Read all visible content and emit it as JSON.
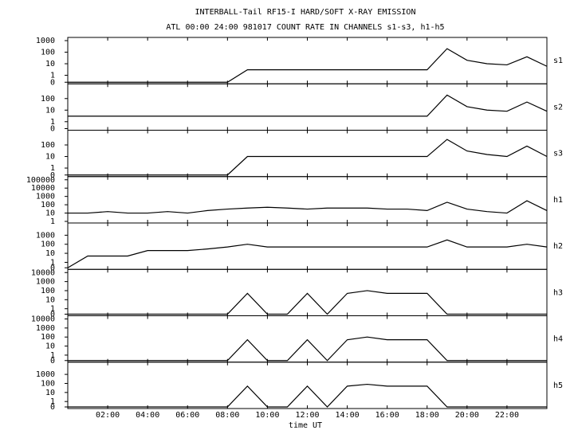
{
  "chart_data": {
    "type": "line",
    "title": "INTERBALL-Tail RF15-I HARD/SOFT X-RAY EMISSION",
    "subtitle": "ATL 00:00 24:00 981017  COUNT RATE IN CHANNELS s1-s3, h1-h5",
    "xlabel": "time UT",
    "log_scale": true,
    "color": "#000000",
    "xlim": [
      0,
      24
    ],
    "xticks": [
      {
        "value": 2,
        "label": "02:00"
      },
      {
        "value": 4,
        "label": "04:00"
      },
      {
        "value": 6,
        "label": "06:00"
      },
      {
        "value": 8,
        "label": "08:00"
      },
      {
        "value": 10,
        "label": "10:00"
      },
      {
        "value": 12,
        "label": "12:00"
      },
      {
        "value": 14,
        "label": "14:00"
      },
      {
        "value": 16,
        "label": "16:00"
      },
      {
        "value": 18,
        "label": "18:00"
      },
      {
        "value": 20,
        "label": "20:00"
      },
      {
        "value": 22,
        "label": "22:00"
      }
    ],
    "x": [
      0,
      1,
      2,
      3,
      4,
      5,
      6,
      7,
      8,
      9,
      10,
      11,
      12,
      13,
      14,
      15,
      16,
      17,
      18,
      19,
      20,
      21,
      22,
      23,
      24
    ],
    "panels": [
      {
        "name": "s1",
        "ylim": [
          0,
          1000
        ],
        "yticks": [
          1000,
          100,
          10,
          1,
          0
        ],
        "values": [
          0,
          0,
          0,
          0,
          0,
          0,
          0,
          0,
          0,
          3,
          3,
          3,
          3,
          3,
          3,
          3,
          3,
          3,
          3,
          200,
          20,
          10,
          8,
          40,
          6
        ]
      },
      {
        "name": "s2",
        "ylim": [
          0,
          1000
        ],
        "yticks": [
          100,
          10,
          1,
          0
        ],
        "values": [
          3,
          3,
          3,
          3,
          3,
          3,
          3,
          3,
          3,
          3,
          3,
          3,
          3,
          3,
          3,
          3,
          3,
          3,
          3,
          200,
          20,
          10,
          8,
          50,
          8
        ]
      },
      {
        "name": "s3",
        "ylim": [
          0,
          1000
        ],
        "yticks": [
          100,
          10,
          1,
          0
        ],
        "values": [
          0,
          0,
          0,
          0,
          0,
          0,
          0,
          0,
          0,
          10,
          10,
          10,
          10,
          10,
          10,
          10,
          10,
          10,
          10,
          300,
          30,
          15,
          10,
          80,
          10
        ]
      },
      {
        "name": "h1",
        "ylim": [
          1,
          100000
        ],
        "yticks": [
          100000,
          10000,
          1000,
          100,
          10,
          1
        ],
        "values": [
          10,
          10,
          15,
          10,
          10,
          15,
          10,
          20,
          30,
          40,
          50,
          40,
          30,
          40,
          40,
          40,
          30,
          30,
          20,
          200,
          30,
          15,
          10,
          300,
          20
        ]
      },
      {
        "name": "h2",
        "ylim": [
          0,
          10000
        ],
        "yticks": [
          1000,
          100,
          10,
          1,
          0
        ],
        "values": [
          0,
          5,
          5,
          5,
          20,
          20,
          20,
          30,
          50,
          100,
          50,
          50,
          50,
          50,
          50,
          50,
          50,
          50,
          50,
          300,
          50,
          50,
          50,
          100,
          50
        ]
      },
      {
        "name": "h3",
        "ylim": [
          0,
          10000
        ],
        "yticks": [
          10000,
          1000,
          100,
          10,
          1,
          0
        ],
        "values": [
          0,
          0,
          0,
          0,
          0,
          0,
          0,
          0,
          0,
          50,
          0,
          0,
          50,
          0,
          50,
          100,
          50,
          50,
          50,
          0,
          0,
          0,
          0,
          0,
          0
        ]
      },
      {
        "name": "h4",
        "ylim": [
          0,
          10000
        ],
        "yticks": [
          10000,
          1000,
          100,
          10,
          1,
          0
        ],
        "values": [
          0,
          0,
          0,
          0,
          0,
          0,
          0,
          0,
          0,
          50,
          0,
          0,
          50,
          0,
          50,
          100,
          50,
          50,
          50,
          0,
          0,
          0,
          0,
          0,
          0
        ]
      },
      {
        "name": "h5",
        "ylim": [
          0,
          10000
        ],
        "yticks": [
          1000,
          100,
          10,
          1,
          0
        ],
        "values": [
          0,
          0,
          0,
          0,
          0,
          0,
          0,
          0,
          0,
          50,
          0,
          0,
          50,
          0,
          50,
          80,
          50,
          50,
          50,
          0,
          0,
          0,
          0,
          0,
          0
        ]
      }
    ]
  }
}
